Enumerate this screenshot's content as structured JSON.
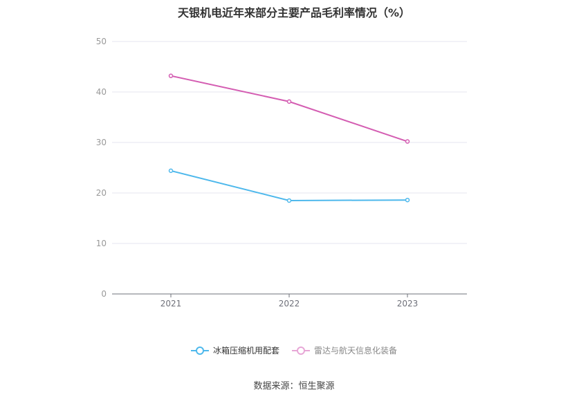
{
  "title": "天银机电近年来部分主要产品毛利率情况（%）",
  "source": "数据来源：恒生聚源",
  "chart_data": {
    "type": "line",
    "title": "天银机电近年来部分主要产品毛利率情况（%）",
    "categories": [
      "2021",
      "2022",
      "2023"
    ],
    "ylim": [
      0,
      50
    ],
    "yticks": [
      0,
      10,
      20,
      30,
      40,
      50
    ],
    "grid": true,
    "legend_position": "bottom",
    "series": [
      {
        "name": "冰箱压缩机用配套",
        "values": [
          24.4,
          18.5,
          18.6
        ],
        "color": "#4db8ec"
      },
      {
        "name": "雷达与航天信息化装备",
        "values": [
          43.2,
          38.1,
          30.2
        ],
        "color": "#d45db2"
      }
    ]
  }
}
